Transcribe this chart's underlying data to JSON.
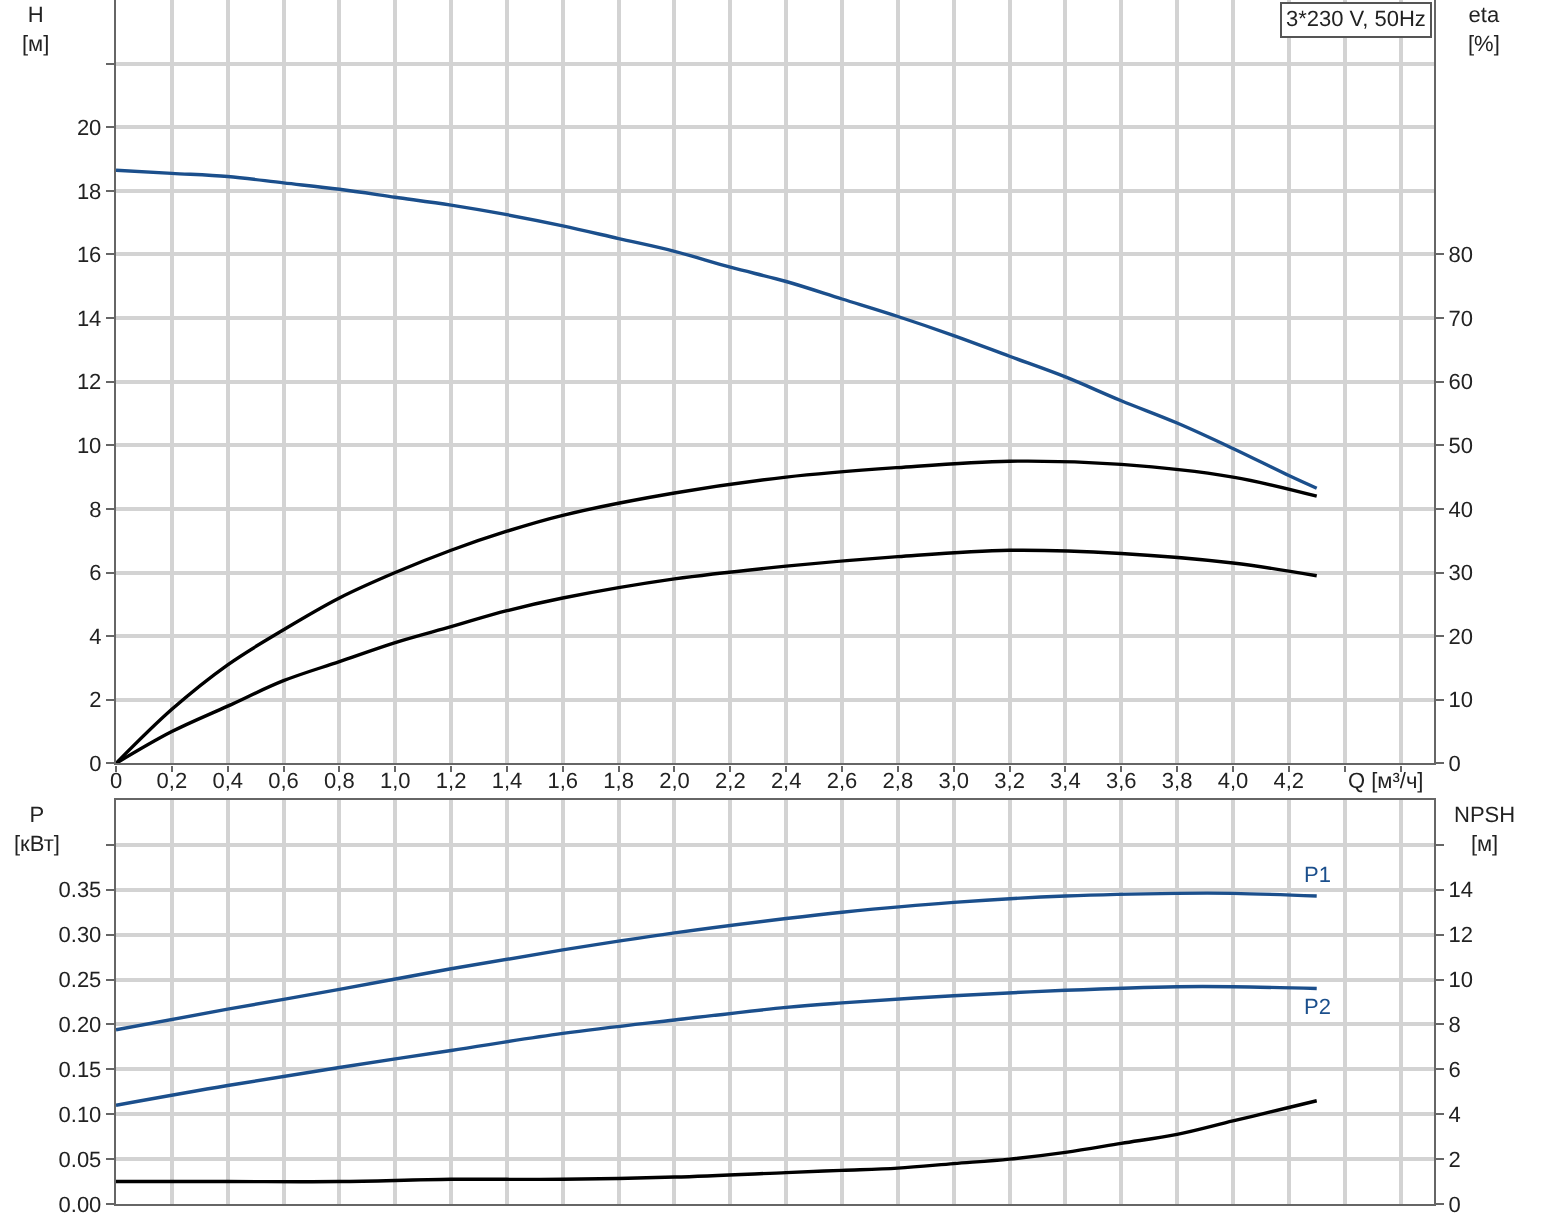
{
  "chart_data": [
    {
      "type": "line",
      "xlabel": "Q [м³/ч]",
      "ylabel": "H [м]",
      "y2label": "eta [%]",
      "annotations": [
        "3*230 V, 50Hz"
      ],
      "grid": true,
      "legend": false,
      "xlim": [
        0,
        4.72
      ],
      "xticks": [
        0,
        {
          "value": 0.2,
          "label": "0,2"
        },
        {
          "value": 0.4,
          "label": "0,4"
        },
        {
          "value": 0.6,
          "label": "0,6"
        },
        {
          "value": 0.8,
          "label": "0,8"
        },
        {
          "value": 1,
          "label": "1,0"
        },
        {
          "value": 1.2,
          "label": "1,2"
        },
        {
          "value": 1.4,
          "label": "1,4"
        },
        {
          "value": 1.6,
          "label": "1,6"
        },
        {
          "value": 1.8,
          "label": "1,8"
        },
        {
          "value": 2,
          "label": "2,0"
        },
        {
          "value": 2.2,
          "label": "2,2"
        },
        {
          "value": 2.4,
          "label": "2,4"
        },
        {
          "value": 2.6,
          "label": "2,6"
        },
        {
          "value": 2.8,
          "label": "2,8"
        },
        {
          "value": 3,
          "label": "3,0"
        },
        {
          "value": 3.2,
          "label": "3,2"
        },
        {
          "value": 3.4,
          "label": "3,4"
        },
        {
          "value": 3.6,
          "label": "3,6"
        },
        {
          "value": 3.8,
          "label": "3,8"
        },
        {
          "value": 4,
          "label": "4,0"
        },
        {
          "value": 4.2,
          "label": "4,2"
        },
        {
          "value": 4.4,
          "label": null
        },
        {
          "value": 4.6,
          "label": null
        }
      ],
      "ylim": [
        0,
        24
      ],
      "yticks": [
        0,
        2,
        4,
        6,
        8,
        10,
        12,
        14,
        16,
        18,
        20,
        {
          "value": 22,
          "label": null
        }
      ],
      "y2lim": [
        0,
        120
      ],
      "y2ticks": [
        0,
        10,
        20,
        30,
        40,
        50,
        60,
        70,
        80
      ],
      "series": [
        {
          "color": "#1b4f8c",
          "x": [
            0,
            0.2,
            0.4,
            0.6,
            0.8,
            1,
            1.2,
            1.4,
            1.6,
            1.8,
            2,
            2.2,
            2.4,
            2.6,
            2.8,
            3,
            3.2,
            3.4,
            3.6,
            3.8,
            4,
            4.2,
            4.3
          ],
          "values": [
            18.65,
            18.55,
            18.45,
            18.25,
            18.05,
            17.8,
            17.55,
            17.25,
            16.9,
            16.5,
            16.1,
            15.6,
            15.15,
            14.6,
            14.05,
            13.45,
            12.8,
            12.15,
            11.4,
            10.7,
            9.9,
            9.05,
            8.65
          ]
        },
        {
          "color": "#000000",
          "axis": "y2",
          "x": [
            0,
            0.2,
            0.4,
            0.6,
            0.8,
            1,
            1.2,
            1.4,
            1.6,
            2,
            2.4,
            2.8,
            3.2,
            3.6,
            4,
            4.3
          ],
          "values": [
            0,
            8.5,
            15.5,
            21,
            26,
            30,
            33.5,
            36.5,
            39,
            42.5,
            45,
            46.5,
            47.5,
            47,
            45,
            42
          ]
        },
        {
          "color": "#000000",
          "axis": "y2",
          "x": [
            0,
            0.2,
            0.4,
            0.6,
            0.8,
            1,
            1.2,
            1.4,
            1.6,
            2,
            2.4,
            2.8,
            3.2,
            3.6,
            4,
            4.3
          ],
          "values": [
            0,
            5,
            9,
            13,
            16,
            19,
            21.5,
            24,
            26,
            29,
            31,
            32.5,
            33.5,
            33,
            31.5,
            29.5
          ]
        }
      ]
    },
    {
      "type": "line",
      "ylabel": "P [кВт]",
      "y2label": "NPSH [м]",
      "grid": true,
      "legend": false,
      "tick_labels": "y",
      "xlim": [
        0,
        4.72
      ],
      "xticks": [
        0,
        0.2,
        0.4,
        0.6,
        0.8,
        1,
        1.2,
        1.4,
        1.6,
        1.8,
        2,
        2.2,
        2.4,
        2.6,
        2.8,
        3,
        3.2,
        3.4,
        3.6,
        3.8,
        4,
        4.2,
        4.4,
        4.6
      ],
      "ylim": [
        0,
        0.45
      ],
      "yticks": [
        {
          "value": 0,
          "label": "0.00"
        },
        0.05,
        {
          "value": 0.1,
          "label": "0.10"
        },
        0.15,
        {
          "value": 0.2,
          "label": "0.20"
        },
        0.25,
        {
          "value": 0.3,
          "label": "0.30"
        },
        0.35,
        {
          "value": 0.4,
          "label": null
        }
      ],
      "y2lim": [
        0,
        18
      ],
      "y2ticks": [
        0,
        2,
        4,
        6,
        8,
        10,
        12,
        14,
        {
          "value": 16,
          "label": null
        }
      ],
      "series": [
        {
          "name": "P1",
          "color": "#1b4f8c",
          "x": [
            0,
            0.4,
            0.8,
            1.2,
            1.6,
            2,
            2.4,
            2.6,
            3,
            3.4,
            3.8,
            4,
            4.3
          ],
          "values": [
            0.194,
            0.217,
            0.239,
            0.262,
            0.283,
            0.302,
            0.318,
            0.325,
            0.336,
            0.343,
            0.346,
            0.346,
            0.343
          ]
        },
        {
          "name": "P2",
          "color": "#1b4f8c",
          "x": [
            0,
            0.4,
            0.8,
            1.2,
            1.6,
            2,
            2.4,
            2.6,
            3,
            3.4,
            3.8,
            4,
            4.3
          ],
          "values": [
            0.11,
            0.132,
            0.152,
            0.171,
            0.19,
            0.205,
            0.219,
            0.224,
            0.232,
            0.238,
            0.242,
            0.242,
            0.24
          ]
        },
        {
          "color": "#000000",
          "axis": "y2",
          "x": [
            0,
            0.4,
            0.8,
            1.2,
            1.6,
            2,
            2.4,
            2.6,
            2.8,
            3,
            3.2,
            3.4,
            3.6,
            3.8,
            4,
            4.2,
            4.3
          ],
          "values": [
            1,
            1,
            1,
            1.1,
            1.1,
            1.2,
            1.4,
            1.5,
            1.6,
            1.8,
            2,
            2.3,
            2.7,
            3.1,
            3.7,
            4.3,
            4.6
          ]
        }
      ]
    }
  ]
}
